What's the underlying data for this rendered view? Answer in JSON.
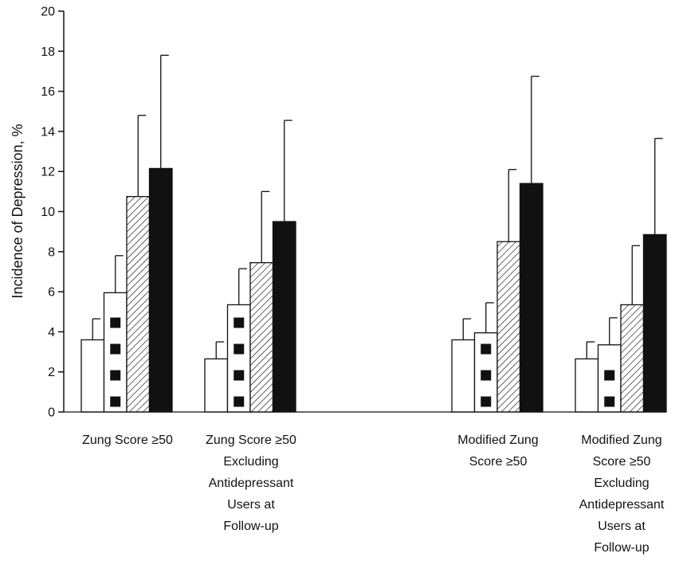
{
  "chart_data": {
    "type": "bar",
    "ylabel": "Incidence of Depression, %",
    "ylim": [
      0,
      20
    ],
    "yticks": [
      0,
      2,
      4,
      6,
      8,
      10,
      12,
      14,
      16,
      18,
      20
    ],
    "grid": false,
    "legend": "none",
    "error_bars": "upper",
    "categories": [
      [
        "Zung Score ≥50"
      ],
      [
        "Zung Score ≥50",
        "Excluding",
        "Antidepressant",
        "Users at",
        "Follow-up"
      ],
      [
        "Modified Zung",
        "Score ≥50"
      ],
      [
        "Modified Zung",
        "Score ≥50",
        "Excluding",
        "Antidepressant",
        "Users at",
        "Follow-up"
      ]
    ],
    "series": [
      {
        "pattern": "open",
        "fill": "#ffffff",
        "values": [
          3.6,
          2.65,
          3.6,
          2.65
        ],
        "error_upper": [
          4.65,
          3.5,
          4.65,
          3.5
        ]
      },
      {
        "pattern": "squares",
        "fill": "#ffffff",
        "values": [
          5.95,
          5.35,
          3.95,
          3.35
        ],
        "error_upper": [
          7.8,
          7.15,
          5.45,
          4.7
        ]
      },
      {
        "pattern": "hatched",
        "fill": "#ffffff",
        "values": [
          10.75,
          7.45,
          8.5,
          5.35
        ],
        "error_upper": [
          14.8,
          11.0,
          12.1,
          8.3
        ]
      },
      {
        "pattern": "solid",
        "fill": "#111111",
        "values": [
          12.15,
          9.5,
          11.4,
          8.85
        ],
        "error_upper": [
          17.8,
          14.55,
          16.75,
          13.65
        ]
      }
    ]
  }
}
